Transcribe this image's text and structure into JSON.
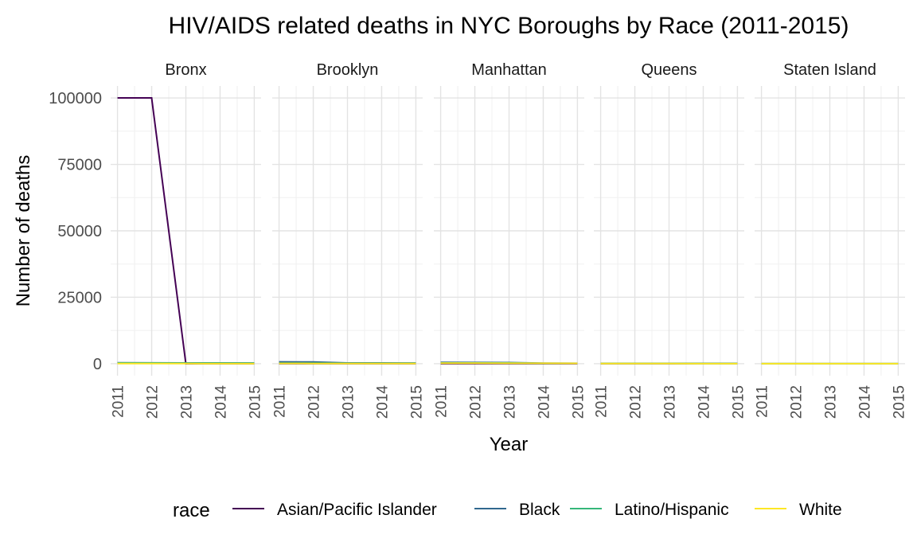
{
  "chart_data": {
    "type": "line",
    "title": "HIV/AIDS related deaths in NYC Boroughs by Race (2011-2015)",
    "xlabel": "Year",
    "ylabel": "Number of deaths",
    "x": [
      2011,
      2012,
      2013,
      2014,
      2015
    ],
    "x_tick_labels": [
      "2011",
      "2012",
      "2013",
      "2014",
      "2015"
    ],
    "y_ticks": [
      0,
      25000,
      50000,
      75000,
      100000
    ],
    "y_tick_labels": [
      "0",
      "25000",
      "50000",
      "75000",
      "100000"
    ],
    "ylim": [
      -4500,
      104500
    ],
    "xlim": [
      2010.8,
      2015.2
    ],
    "grid": true,
    "legend": {
      "title": "race",
      "position": "bottom",
      "entries": [
        "Asian/Pacific Islander",
        "Black",
        "Latino/Hispanic",
        "White"
      ]
    },
    "colors": {
      "Asian/Pacific Islander": "#440154",
      "Black": "#31688e",
      "Latino/Hispanic": "#35b779",
      "White": "#fde725"
    },
    "panels": [
      {
        "name": "Bronx",
        "series": [
          {
            "name": "Asian/Pacific Islander",
            "values": [
              100000,
              100000,
              0,
              0,
              0
            ]
          },
          {
            "name": "Black",
            "values": [
              350,
              330,
              300,
              280,
              260
            ]
          },
          {
            "name": "Latino/Hispanic",
            "values": [
              300,
              290,
              270,
              250,
              240
            ]
          },
          {
            "name": "White",
            "values": [
              50,
              45,
              40,
              35,
              30
            ]
          }
        ]
      },
      {
        "name": "Brooklyn",
        "series": [
          {
            "name": "Asian/Pacific Islander",
            "values": [
              10,
              10,
              10,
              10,
              10
            ]
          },
          {
            "name": "Black",
            "values": [
              700,
              650,
              300,
              280,
              260
            ]
          },
          {
            "name": "Latino/Hispanic",
            "values": [
              200,
              190,
              180,
              170,
              160
            ]
          },
          {
            "name": "White",
            "values": [
              100,
              90,
              80,
              75,
              70
            ]
          }
        ]
      },
      {
        "name": "Manhattan",
        "series": [
          {
            "name": "Asian/Pacific Islander",
            "values": [
              15,
              15,
              15,
              10,
              10
            ]
          },
          {
            "name": "Black",
            "values": [
              500,
              480,
              450,
              200,
              180
            ]
          },
          {
            "name": "Latino/Hispanic",
            "values": [
              300,
              290,
              280,
              150,
              140
            ]
          },
          {
            "name": "White",
            "values": [
              200,
              190,
              180,
              160,
              150
            ]
          }
        ]
      },
      {
        "name": "Queens",
        "series": [
          {
            "name": "Asian/Pacific Islander",
            "values": [
              20,
              20,
              20,
              20,
              20
            ]
          },
          {
            "name": "Black",
            "values": [
              150,
              140,
              130,
              120,
              110
            ]
          },
          {
            "name": "Latino/Hispanic",
            "values": [
              120,
              110,
              100,
              95,
              90
            ]
          },
          {
            "name": "White",
            "values": [
              50,
              45,
              40,
              35,
              30
            ]
          }
        ]
      },
      {
        "name": "Staten Island",
        "series": [
          {
            "name": "Asian/Pacific Islander",
            "values": [
              2,
              2,
              2,
              2,
              2
            ]
          },
          {
            "name": "Black",
            "values": [
              20,
              18,
              16,
              15,
              14
            ]
          },
          {
            "name": "Latino/Hispanic",
            "values": [
              10,
              9,
              8,
              8,
              7
            ]
          },
          {
            "name": "White",
            "values": [
              20,
              18,
              16,
              15,
              14
            ]
          }
        ]
      }
    ]
  }
}
